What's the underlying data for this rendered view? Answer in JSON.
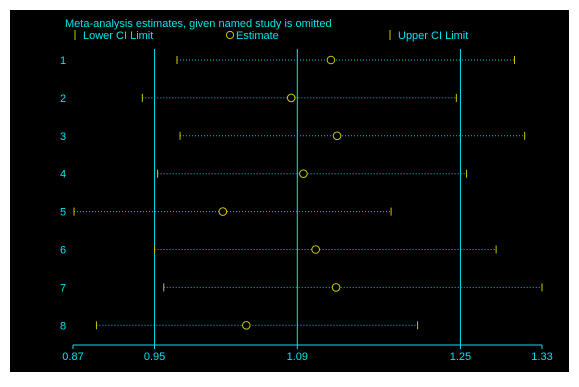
{
  "colors": {
    "background": "#000000",
    "panel_edge": "#ffffff",
    "text": "#00e5ee",
    "axis": "#00e5ee",
    "ci_line": "#00c8e0",
    "lower_marker": "#c8c800",
    "estimate_marker": "#c8c800",
    "upper_marker": "#c8c800"
  },
  "chart_data": {
    "type": "scatter",
    "title": "Meta-analysis estimates, given named study is omitted",
    "legend": {
      "placement": "top",
      "entries": [
        {
          "key": "lower",
          "label": "Lower CI Limit",
          "icon": "vertical-tick-icon"
        },
        {
          "key": "estimate",
          "label": "Estimate",
          "icon": "open-circle-icon"
        },
        {
          "key": "upper",
          "label": "Upper CI Limit",
          "icon": "vertical-tick-icon"
        }
      ]
    },
    "xlim": [
      0.87,
      1.33
    ],
    "x_ticks": [
      {
        "value": 0.87,
        "label": "0.87"
      },
      {
        "value": 0.95,
        "label": "0.95"
      },
      {
        "value": 1.09,
        "label": "1.09"
      },
      {
        "value": 1.25,
        "label": "1.25"
      },
      {
        "value": 1.33,
        "label": "1.33"
      }
    ],
    "reference_lines": [
      0.95,
      1.09,
      1.25
    ],
    "xlabel": "",
    "ylabel": "",
    "grid": false,
    "studies": [
      {
        "label": "1",
        "lower": 0.972,
        "estimate": 1.123,
        "upper": 1.303
      },
      {
        "label": "2",
        "lower": 0.938,
        "estimate": 1.084,
        "upper": 1.246
      },
      {
        "label": "3",
        "lower": 0.975,
        "estimate": 1.129,
        "upper": 1.313
      },
      {
        "label": "4",
        "lower": 0.953,
        "estimate": 1.096,
        "upper": 1.256
      },
      {
        "label": "5",
        "lower": 0.871,
        "estimate": 1.017,
        "upper": 1.182
      },
      {
        "label": "6",
        "lower": 0.95,
        "estimate": 1.108,
        "upper": 1.285
      },
      {
        "label": "7",
        "lower": 0.959,
        "estimate": 1.128,
        "upper": 1.33
      },
      {
        "label": "8",
        "lower": 0.893,
        "estimate": 1.04,
        "upper": 1.208
      }
    ]
  }
}
